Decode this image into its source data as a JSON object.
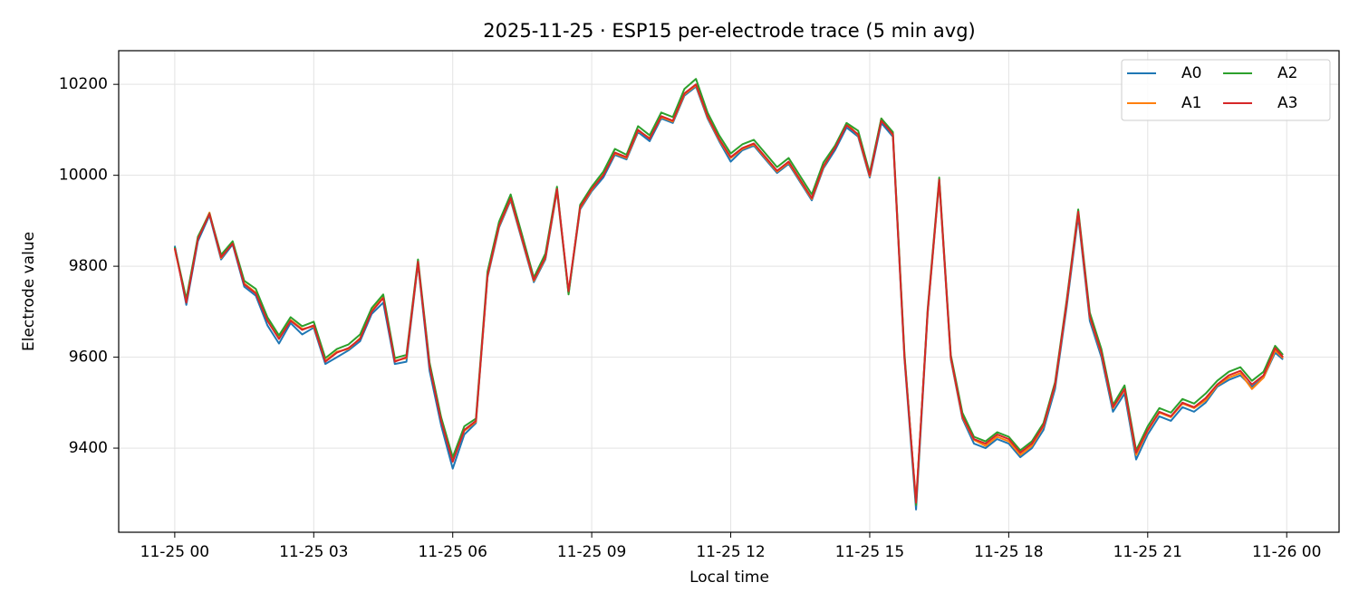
{
  "chart_data": {
    "type": "line",
    "title": "2025-11-25 · ESP15 per-electrode trace (5 min avg)",
    "x_label": "Local time",
    "y_label": "Electrode value",
    "x": [
      0,
      0.25,
      0.5,
      0.75,
      1,
      1.25,
      1.5,
      1.75,
      2,
      2.25,
      2.5,
      2.75,
      3,
      3.25,
      3.5,
      3.75,
      4,
      4.25,
      4.5,
      4.75,
      5,
      5.25,
      5.5,
      5.75,
      6,
      6.25,
      6.5,
      6.75,
      7,
      7.25,
      7.5,
      7.75,
      8,
      8.25,
      8.5,
      8.75,
      9,
      9.25,
      9.5,
      9.75,
      10,
      10.25,
      10.5,
      10.75,
      11,
      11.25,
      11.5,
      11.75,
      12,
      12.25,
      12.5,
      12.75,
      13,
      13.25,
      13.5,
      13.75,
      14,
      14.25,
      14.5,
      14.75,
      15,
      15.25,
      15.5,
      15.75,
      16,
      16.25,
      16.5,
      16.75,
      17,
      17.25,
      17.5,
      17.75,
      18,
      18.25,
      18.5,
      18.75,
      19,
      19.25,
      19.5,
      19.75,
      20,
      20.25,
      20.5,
      20.75,
      21,
      21.25,
      21.5,
      21.75,
      22,
      22.25,
      22.5,
      22.75,
      23,
      23.25,
      23.5,
      23.75,
      23.92
    ],
    "series": [
      {
        "name": "A0",
        "color": "#1f77b4",
        "values": [
          9845,
          9715,
          9855,
          9912,
          9815,
          9848,
          9755,
          9735,
          9670,
          9630,
          9675,
          9650,
          9665,
          9585,
          9600,
          9615,
          9635,
          9695,
          9720,
          9585,
          9590,
          9805,
          9570,
          9450,
          9355,
          9430,
          9455,
          9775,
          9885,
          9945,
          9855,
          9765,
          9815,
          9965,
          9740,
          9925,
          9965,
          9995,
          10045,
          10035,
          10095,
          10075,
          10125,
          10115,
          10175,
          10195,
          10125,
          10075,
          10030,
          10055,
          10065,
          10035,
          10005,
          10025,
          9985,
          9945,
          10015,
          10055,
          10105,
          10085,
          9995,
          10115,
          10085,
          9595,
          9265,
          9695,
          9985,
          9595,
          9465,
          9410,
          9400,
          9420,
          9410,
          9380,
          9400,
          9440,
          9530,
          9710,
          9910,
          9680,
          9600,
          9480,
          9520,
          9375,
          9430,
          9470,
          9460,
          9490,
          9480,
          9500,
          9535,
          9550,
          9560,
          9535,
          9555,
          9610,
          9595
        ]
      },
      {
        "name": "A1",
        "color": "#ff7f0e",
        "values": [
          9838,
          9725,
          9862,
          9918,
          9818,
          9852,
          9762,
          9742,
          9682,
          9645,
          9682,
          9662,
          9668,
          9592,
          9612,
          9618,
          9642,
          9705,
          9735,
          9592,
          9598,
          9808,
          9585,
          9465,
          9375,
          9438,
          9458,
          9778,
          9888,
          9948,
          9858,
          9768,
          9818,
          9968,
          9742,
          9928,
          9968,
          10002,
          10048,
          10038,
          10098,
          10082,
          10128,
          10118,
          10178,
          10198,
          10128,
          10078,
          10038,
          10058,
          10068,
          10038,
          10008,
          10028,
          9988,
          9948,
          10018,
          10062,
          10115,
          10088,
          9998,
          10125,
          10088,
          9602,
          9282,
          9698,
          9988,
          9598,
          9468,
          9418,
          9405,
          9425,
          9415,
          9385,
          9405,
          9448,
          9538,
          9718,
          9918,
          9688,
          9608,
          9488,
          9528,
          9385,
          9438,
          9478,
          9468,
          9498,
          9488,
          9505,
          9538,
          9555,
          9565,
          9530,
          9555,
          9615,
          9598
        ]
      },
      {
        "name": "A2",
        "color": "#2ca02c",
        "values": [
          9842,
          9728,
          9865,
          9916,
          9825,
          9855,
          9768,
          9750,
          9688,
          9648,
          9688,
          9668,
          9678,
          9598,
          9618,
          9628,
          9650,
          9708,
          9738,
          9598,
          9605,
          9815,
          9588,
          9468,
          9380,
          9448,
          9465,
          9788,
          9898,
          9958,
          9868,
          9775,
          9828,
          9975,
          9738,
          9935,
          9975,
          10008,
          10058,
          10045,
          10108,
          10088,
          10138,
          10128,
          10190,
          10212,
          10138,
          10088,
          10048,
          10068,
          10078,
          10048,
          10018,
          10038,
          9998,
          9958,
          10028,
          10065,
          10115,
          10098,
          10005,
          10125,
          10095,
          9608,
          9275,
          9705,
          9995,
          9605,
          9478,
          9425,
          9415,
          9435,
          9425,
          9395,
          9415,
          9455,
          9545,
          9725,
          9925,
          9698,
          9618,
          9495,
          9538,
          9395,
          9448,
          9488,
          9478,
          9508,
          9498,
          9520,
          9548,
          9568,
          9578,
          9548,
          9568,
          9625,
          9605
        ]
      },
      {
        "name": "A3",
        "color": "#d62728",
        "values": [
          9840,
          9720,
          9860,
          9915,
          9820,
          9850,
          9760,
          9740,
          9680,
          9640,
          9680,
          9660,
          9670,
          9590,
          9610,
          9620,
          9640,
          9700,
          9730,
          9590,
          9600,
          9810,
          9580,
          9460,
          9370,
          9440,
          9460,
          9780,
          9890,
          9950,
          9860,
          9770,
          9820,
          9970,
          9745,
          9930,
          9970,
          10000,
          10050,
          10040,
          10100,
          10080,
          10130,
          10120,
          10180,
          10200,
          10130,
          10080,
          10040,
          10060,
          10070,
          10040,
          10010,
          10030,
          9990,
          9950,
          10020,
          10060,
          10110,
          10090,
          10000,
          10120,
          10090,
          9600,
          9280,
          9700,
          9990,
          9600,
          9470,
          9420,
          9410,
          9430,
          9420,
          9390,
          9410,
          9450,
          9540,
          9720,
          9920,
          9690,
          9610,
          9490,
          9530,
          9390,
          9440,
          9480,
          9470,
          9500,
          9490,
          9510,
          9540,
          9560,
          9570,
          9540,
          9560,
          9620,
          9600
        ]
      }
    ],
    "xlim": [
      -1.21,
      25.13
    ],
    "ylim": [
      9215,
      10274
    ],
    "xticks": [
      {
        "value": 0,
        "label": "11-25 00"
      },
      {
        "value": 3,
        "label": "11-25 03"
      },
      {
        "value": 6,
        "label": "11-25 06"
      },
      {
        "value": 9,
        "label": "11-25 09"
      },
      {
        "value": 12,
        "label": "11-25 12"
      },
      {
        "value": 15,
        "label": "11-25 15"
      },
      {
        "value": 18,
        "label": "11-25 18"
      },
      {
        "value": 21,
        "label": "11-25 21"
      },
      {
        "value": 24,
        "label": "11-26 00"
      }
    ],
    "yticks": [
      9400,
      9600,
      9800,
      10000,
      10200
    ],
    "grid": true,
    "legend": "upper-right"
  }
}
